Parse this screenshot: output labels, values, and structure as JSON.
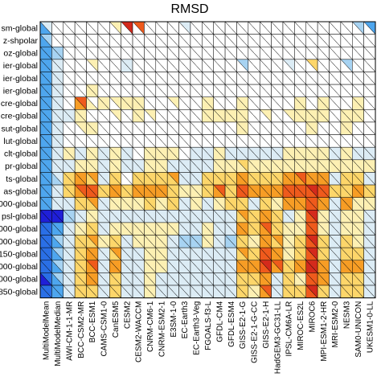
{
  "chart_data": {
    "type": "heatmap",
    "title": "RMSD",
    "rows": [
      "sm-global",
      "z-shpolar",
      "oz-global",
      "ier-global",
      "ier-global",
      "ier-global",
      "cre-global",
      "cre-global",
      "sut-global",
      "lut-global",
      "clt-global",
      "pr-global",
      "ts-global",
      "as-global",
      "000-global",
      "psl-global",
      "000-global",
      "000-global",
      "150-global",
      "000-global",
      "000-global",
      "850-global"
    ],
    "columns": [
      "MultiModelMean",
      "MultiModelMedian",
      "AWI-CM-1-1-MR",
      "BCC-CSM2-MR",
      "BCC-ESM1",
      "CAMS-CSM1-0",
      "CanESM5",
      "CESM2",
      "CESM2-WACCM",
      "CNRM-CM6-1",
      "CNRM-ESM2-1",
      "E3SM-1-0",
      "EC-Earth3",
      "EC-Earth3-Veg",
      "FGOALS-f3-L",
      "GFDL-CM4",
      "GFDL-ESM4",
      "GISS-E2-1-G",
      "GISS-E2-1-G-CC",
      "GISS-E2-1-H",
      "HadGEM3-GC31-LL",
      "IPSL-CM6A-LR",
      "MIROC-ES2L",
      "MIROC6",
      "MPI-ESM1-2-HR",
      "MRI-ESM2-0",
      "NESM3",
      "SAM0-UNICON",
      "UKESM1-0-LL"
    ],
    "value_range": [
      -1,
      1
    ],
    "cell_split": "diagonal (two reference datasets per cell)",
    "colors": {
      "-3": "#1f1fd8",
      "-2": "#2a6fe6",
      "-1": "#4ea6ee",
      "0": "#a7d3f2",
      "1": "#dcecf5",
      "2": "#ffffff",
      "3": "#fdf0b3",
      "4": "#fdd66a",
      "5": "#f79d25",
      "6": "#ef5a1c",
      "7": "#d42a1c",
      "8": "#a9a9a9"
    },
    "colorbar_ends": [
      "#d9166a",
      "#7a2fd0"
    ],
    "upper_triangles": [
      [
        1,
        2,
        2,
        2,
        2,
        2,
        3,
        7,
        6,
        2,
        2,
        2,
        1,
        2,
        2,
        2,
        2,
        2,
        2,
        2,
        2,
        2,
        2,
        2,
        2,
        2,
        2,
        0,
        -1
      ],
      [
        0,
        2,
        2,
        2,
        2,
        2,
        2,
        2,
        2,
        2,
        2,
        2,
        2,
        2,
        2,
        2,
        2,
        2,
        2,
        2,
        2,
        2,
        2,
        2,
        2,
        2,
        2,
        2,
        2
      ],
      [
        -1,
        0,
        2,
        2,
        2,
        2,
        2,
        2,
        2,
        2,
        2,
        2,
        2,
        2,
        2,
        2,
        2,
        2,
        2,
        2,
        2,
        2,
        2,
        2,
        2,
        2,
        2,
        2,
        2
      ],
      [
        -1,
        1,
        2,
        2,
        3,
        2,
        2,
        1,
        2,
        2,
        2,
        2,
        2,
        2,
        2,
        2,
        2,
        0,
        2,
        2,
        2,
        1,
        2,
        4,
        2,
        2,
        0,
        2,
        2
      ],
      [
        -1,
        1,
        2,
        2,
        2,
        2,
        2,
        2,
        2,
        2,
        2,
        2,
        2,
        2,
        2,
        2,
        2,
        2,
        2,
        2,
        2,
        2,
        2,
        2,
        2,
        2,
        2,
        2,
        2
      ],
      [
        -1,
        1,
        2,
        2,
        3,
        2,
        2,
        2,
        2,
        2,
        2,
        2,
        2,
        2,
        2,
        2,
        2,
        2,
        2,
        2,
        2,
        2,
        2,
        2,
        2,
        2,
        2,
        2,
        2
      ],
      [
        -1,
        1,
        2,
        6,
        2,
        3,
        3,
        3,
        3,
        2,
        2,
        3,
        2,
        2,
        3,
        2,
        2,
        3,
        2,
        2,
        2,
        2,
        3,
        2,
        3,
        2,
        2,
        3,
        2
      ],
      [
        -1,
        1,
        1,
        3,
        2,
        2,
        3,
        2,
        3,
        3,
        2,
        2,
        2,
        2,
        3,
        3,
        3,
        3,
        2,
        3,
        2,
        3,
        3,
        3,
        3,
        2,
        3,
        3,
        2
      ],
      [
        -1,
        1,
        2,
        3,
        3,
        2,
        2,
        2,
        2,
        2,
        2,
        2,
        2,
        2,
        2,
        2,
        2,
        3,
        2,
        2,
        2,
        2,
        2,
        3,
        2,
        2,
        3,
        2,
        2
      ],
      [
        -1,
        1,
        2,
        2,
        2,
        2,
        2,
        2,
        2,
        2,
        2,
        2,
        2,
        2,
        2,
        2,
        2,
        2,
        2,
        2,
        2,
        2,
        2,
        2,
        2,
        2,
        2,
        2,
        2
      ],
      [
        -1,
        1,
        3,
        1,
        3,
        1,
        3,
        1,
        2,
        3,
        3,
        3,
        2,
        1,
        1,
        3,
        1,
        1,
        1,
        1,
        1,
        3,
        3,
        3,
        3,
        1,
        3,
        1,
        1
      ],
      [
        -1,
        1,
        1,
        3,
        3,
        1,
        3,
        1,
        1,
        3,
        3,
        1,
        1,
        1,
        1,
        3,
        3,
        4,
        3,
        3,
        3,
        3,
        3,
        3,
        3,
        3,
        3,
        3,
        3
      ],
      [
        -1,
        1,
        4,
        5,
        5,
        1,
        4,
        2,
        4,
        4,
        4,
        5,
        1,
        1,
        4,
        4,
        4,
        5,
        4,
        4,
        4,
        5,
        6,
        5,
        5,
        1,
        4,
        4,
        1
      ],
      [
        -1,
        1,
        4,
        6,
        6,
        4,
        5,
        4,
        5,
        5,
        5,
        4,
        3,
        3,
        4,
        6,
        4,
        6,
        5,
        5,
        5,
        6,
        6,
        7,
        6,
        4,
        4,
        5,
        4
      ],
      [
        -1,
        1,
        1,
        4,
        5,
        1,
        3,
        3,
        3,
        4,
        3,
        4,
        1,
        3,
        1,
        3,
        4,
        4,
        1,
        4,
        3,
        5,
        5,
        6,
        5,
        1,
        5,
        3,
        3
      ],
      [
        -3,
        -3,
        0,
        1,
        3,
        1,
        1,
        1,
        1,
        1,
        1,
        1,
        1,
        1,
        1,
        1,
        1,
        5,
        4,
        5,
        4,
        1,
        3,
        7,
        3,
        1,
        3,
        3,
        1
      ],
      [
        -2,
        -1,
        1,
        3,
        4,
        1,
        3,
        3,
        3,
        3,
        3,
        3,
        1,
        1,
        3,
        1,
        1,
        5,
        4,
        6,
        4,
        3,
        3,
        6,
        3,
        1,
        3,
        3,
        1
      ],
      [
        -2,
        0,
        1,
        4,
        5,
        3,
        4,
        1,
        3,
        3,
        3,
        1,
        0,
        0,
        3,
        1,
        0,
        4,
        3,
        5,
        5,
        3,
        4,
        7,
        4,
        1,
        4,
        3,
        1
      ],
      [
        -2,
        0,
        1,
        4,
        5,
        1,
        5,
        1,
        1,
        3,
        3,
        1,
        1,
        1,
        1,
        1,
        1,
        5,
        4,
        6,
        5,
        3,
        4,
        7,
        4,
        1,
        4,
        4,
        1
      ],
      [
        -2,
        0,
        1,
        4,
        6,
        1,
        5,
        1,
        1,
        3,
        3,
        1,
        1,
        1,
        1,
        1,
        1,
        5,
        5,
        7,
        6,
        4,
        5,
        7,
        5,
        1,
        5,
        5,
        1
      ],
      [
        -2,
        0,
        1,
        4,
        5,
        1,
        4,
        1,
        1,
        3,
        1,
        1,
        1,
        1,
        1,
        1,
        1,
        4,
        4,
        5,
        1,
        4,
        3,
        6,
        5,
        1,
        4,
        4,
        1
      ],
      [
        -2,
        -1,
        1,
        4,
        4,
        1,
        4,
        1,
        1,
        3,
        1,
        1,
        1,
        1,
        1,
        1,
        1,
        4,
        3,
        6,
        1,
        4,
        4,
        7,
        4,
        1,
        4,
        4,
        1
      ]
    ],
    "lower_triangles": [
      [
        -1,
        2,
        2,
        2,
        2,
        2,
        2,
        2,
        2,
        2,
        2,
        2,
        2,
        2,
        2,
        2,
        2,
        2,
        2,
        2,
        2,
        2,
        2,
        2,
        2,
        2,
        2,
        2,
        2
      ],
      [
        -1,
        2,
        2,
        2,
        2,
        2,
        2,
        2,
        2,
        2,
        2,
        2,
        2,
        2,
        2,
        2,
        2,
        2,
        2,
        2,
        2,
        2,
        2,
        2,
        2,
        2,
        2,
        2,
        2
      ],
      [
        -1,
        0,
        2,
        2,
        2,
        2,
        2,
        2,
        2,
        2,
        2,
        2,
        2,
        2,
        2,
        2,
        2,
        2,
        2,
        2,
        2,
        2,
        2,
        2,
        2,
        2,
        2,
        2,
        2
      ],
      [
        -1,
        1,
        2,
        2,
        2,
        2,
        2,
        1,
        2,
        2,
        2,
        2,
        2,
        2,
        2,
        2,
        2,
        2,
        2,
        2,
        2,
        2,
        2,
        2,
        2,
        2,
        2,
        2,
        2
      ],
      [
        -1,
        1,
        2,
        2,
        2,
        2,
        2,
        2,
        2,
        2,
        2,
        2,
        2,
        2,
        2,
        2,
        2,
        2,
        2,
        2,
        2,
        2,
        2,
        2,
        2,
        2,
        2,
        2,
        2
      ],
      [
        -1,
        1,
        2,
        2,
        3,
        2,
        2,
        2,
        2,
        2,
        2,
        2,
        2,
        2,
        2,
        2,
        2,
        2,
        2,
        2,
        2,
        2,
        2,
        2,
        2,
        2,
        2,
        2,
        2
      ],
      [
        -1,
        1,
        2,
        5,
        3,
        3,
        2,
        3,
        3,
        2,
        2,
        2,
        2,
        2,
        3,
        2,
        2,
        3,
        2,
        2,
        2,
        2,
        3,
        2,
        3,
        2,
        2,
        3,
        2
      ],
      [
        -1,
        1,
        1,
        3,
        2,
        2,
        2,
        2,
        3,
        2,
        2,
        2,
        2,
        2,
        3,
        3,
        3,
        3,
        2,
        2,
        2,
        2,
        3,
        3,
        3,
        2,
        3,
        3,
        2
      ],
      [
        -1,
        1,
        2,
        2,
        3,
        2,
        2,
        2,
        2,
        2,
        2,
        2,
        2,
        2,
        2,
        2,
        2,
        3,
        2,
        2,
        2,
        2,
        2,
        3,
        2,
        2,
        3,
        2,
        2
      ],
      [
        -1,
        1,
        2,
        2,
        2,
        2,
        2,
        2,
        2,
        2,
        2,
        2,
        2,
        2,
        2,
        2,
        2,
        2,
        2,
        2,
        2,
        2,
        2,
        2,
        2,
        2,
        2,
        2,
        2
      ],
      [
        -1,
        1,
        3,
        1,
        3,
        1,
        3,
        1,
        2,
        3,
        3,
        3,
        2,
        1,
        1,
        3,
        1,
        1,
        1,
        1,
        1,
        3,
        3,
        3,
        3,
        1,
        3,
        1,
        1
      ],
      [
        -1,
        1,
        1,
        3,
        3,
        1,
        3,
        1,
        1,
        3,
        3,
        1,
        1,
        1,
        1,
        3,
        3,
        3,
        3,
        3,
        3,
        3,
        3,
        3,
        3,
        3,
        3,
        3,
        3
      ],
      [
        -1,
        0,
        4,
        5,
        4,
        1,
        4,
        2,
        4,
        4,
        4,
        4,
        1,
        1,
        4,
        4,
        4,
        5,
        4,
        4,
        4,
        5,
        5,
        5,
        5,
        1,
        4,
        4,
        1
      ],
      [
        -1,
        1,
        4,
        5,
        6,
        4,
        5,
        4,
        5,
        5,
        5,
        4,
        3,
        3,
        4,
        5,
        4,
        6,
        5,
        5,
        5,
        6,
        6,
        6,
        6,
        4,
        4,
        5,
        4
      ],
      [
        -1,
        1,
        1,
        4,
        4,
        1,
        3,
        3,
        3,
        4,
        3,
        4,
        1,
        3,
        1,
        3,
        4,
        4,
        1,
        4,
        3,
        5,
        5,
        6,
        5,
        1,
        5,
        3,
        3
      ],
      [
        -3,
        -3,
        0,
        1,
        3,
        1,
        1,
        1,
        1,
        1,
        1,
        1,
        1,
        1,
        1,
        1,
        1,
        4,
        4,
        5,
        4,
        1,
        3,
        6,
        3,
        1,
        3,
        3,
        1
      ],
      [
        -2,
        -1,
        1,
        3,
        4,
        1,
        3,
        3,
        3,
        3,
        3,
        3,
        1,
        1,
        3,
        1,
        1,
        5,
        4,
        5,
        4,
        3,
        3,
        6,
        3,
        1,
        3,
        3,
        1
      ],
      [
        -2,
        -1,
        1,
        4,
        4,
        3,
        4,
        1,
        3,
        3,
        3,
        1,
        0,
        0,
        3,
        1,
        0,
        4,
        3,
        5,
        4,
        3,
        4,
        6,
        4,
        1,
        4,
        3,
        1
      ],
      [
        -2,
        -1,
        1,
        4,
        5,
        1,
        4,
        1,
        1,
        3,
        3,
        1,
        1,
        1,
        1,
        1,
        1,
        4,
        4,
        6,
        5,
        3,
        4,
        6,
        4,
        1,
        4,
        4,
        1
      ],
      [
        -2,
        -1,
        1,
        4,
        5,
        1,
        5,
        1,
        1,
        3,
        3,
        1,
        1,
        1,
        1,
        1,
        1,
        5,
        5,
        6,
        5,
        4,
        5,
        7,
        5,
        1,
        5,
        5,
        1
      ],
      [
        -3,
        -1,
        1,
        4,
        5,
        1,
        4,
        1,
        1,
        3,
        1,
        1,
        1,
        1,
        1,
        1,
        1,
        4,
        4,
        5,
        1,
        4,
        3,
        6,
        5,
        1,
        4,
        4,
        1
      ],
      [
        -2,
        -1,
        1,
        4,
        4,
        1,
        4,
        1,
        1,
        3,
        1,
        1,
        1,
        1,
        1,
        1,
        1,
        4,
        3,
        5,
        1,
        4,
        4,
        6,
        4,
        1,
        4,
        4,
        1
      ]
    ]
  }
}
